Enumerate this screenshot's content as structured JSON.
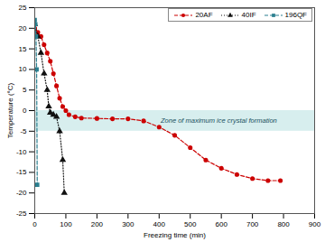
{
  "chart_data": {
    "type": "line",
    "xlabel": "Freezing time (min)",
    "ylabel": "Temperature (°C)",
    "xlim": [
      0,
      900
    ],
    "xticks": [
      0,
      100,
      200,
      300,
      400,
      500,
      600,
      700,
      800,
      900
    ],
    "ylim": [
      -25,
      25
    ],
    "yticks": [
      -25,
      -20,
      -15,
      -10,
      -5,
      0,
      5,
      10,
      15,
      20,
      25
    ],
    "legend": "top-right",
    "zone": {
      "y": [
        -5,
        0
      ],
      "label": "Zone of maximum ice crystal formation"
    },
    "series": [
      {
        "name": "20AF",
        "color": "#cc0000",
        "marker": "circle",
        "line_style": "dashed",
        "x": [
          0,
          10,
          20,
          30,
          40,
          50,
          60,
          70,
          80,
          90,
          100,
          110,
          130,
          150,
          200,
          250,
          300,
          350,
          400,
          450,
          500,
          550,
          600,
          650,
          700,
          750,
          790
        ],
        "values": [
          20,
          19,
          18,
          16,
          14,
          12,
          9,
          6,
          3,
          1,
          0,
          -1,
          -1.5,
          -1.8,
          -1.9,
          -2,
          -2,
          -2.5,
          -4,
          -6,
          -9,
          -12,
          -14,
          -15.5,
          -16.5,
          -17,
          -17
        ]
      },
      {
        "name": "40IF",
        "color": "#111111",
        "marker": "triangle",
        "line_style": "dotted",
        "x": [
          0,
          10,
          20,
          30,
          40,
          45,
          50,
          60,
          70,
          80,
          90,
          95
        ],
        "values": [
          21,
          18,
          14,
          9,
          5,
          1,
          -0.5,
          -1,
          -1.5,
          -5,
          -12,
          -20
        ]
      },
      {
        "name": "196QF",
        "color": "#2a7f8f",
        "marker": "square",
        "line_style": "dashed",
        "x": [
          0,
          2,
          4,
          6,
          8
        ],
        "values": [
          22,
          21,
          18,
          10,
          -18
        ]
      }
    ]
  }
}
